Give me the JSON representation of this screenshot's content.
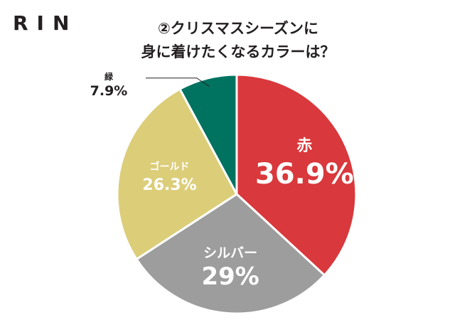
{
  "logo": "RIN",
  "title": {
    "line1": "②クリスマスシーズンに",
    "line2": "身に着けたくなるカラーは？"
  },
  "chart_data": {
    "type": "pie",
    "start_angle_deg": 0,
    "direction": "clockwise",
    "slices": [
      {
        "label": "赤",
        "value": 36.9,
        "display": "36.9%",
        "color": "#d9383c",
        "label_color": "#ffffff"
      },
      {
        "label": "シルバー",
        "value": 29,
        "display": "29%",
        "color": "#9d9d9d",
        "label_color": "#ffffff"
      },
      {
        "label": "ゴールド",
        "value": 26.3,
        "display": "26.3%",
        "color": "#dccd79",
        "label_color": "#ffffff"
      },
      {
        "label": "緑",
        "value": 7.9,
        "display": "7.9%",
        "color": "#007360",
        "label_color": "#231f20"
      }
    ]
  }
}
